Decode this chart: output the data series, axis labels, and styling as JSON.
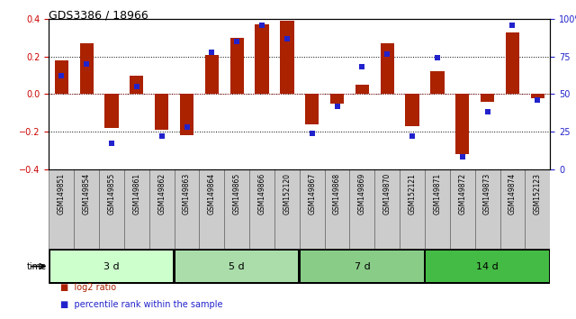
{
  "title": "GDS3386 / 18966",
  "samples": [
    "GSM149851",
    "GSM149854",
    "GSM149855",
    "GSM149861",
    "GSM149862",
    "GSM149863",
    "GSM149864",
    "GSM149865",
    "GSM149866",
    "GSM152120",
    "GSM149867",
    "GSM149868",
    "GSM149869",
    "GSM149870",
    "GSM152121",
    "GSM149871",
    "GSM149872",
    "GSM149873",
    "GSM149874",
    "GSM152123"
  ],
  "log2_ratio": [
    0.18,
    0.27,
    -0.18,
    0.1,
    -0.19,
    -0.22,
    0.21,
    0.3,
    0.37,
    0.39,
    -0.16,
    -0.05,
    0.05,
    0.27,
    -0.17,
    0.12,
    -0.32,
    -0.04,
    0.33,
    -0.02
  ],
  "percentile": [
    62,
    70,
    17,
    55,
    22,
    28,
    78,
    85,
    96,
    87,
    24,
    42,
    68,
    77,
    22,
    74,
    8,
    38,
    96,
    46
  ],
  "groups": [
    {
      "label": "3 d",
      "start": 0,
      "end": 5,
      "color": "#ccffcc"
    },
    {
      "label": "5 d",
      "start": 5,
      "end": 10,
      "color": "#aaddaa"
    },
    {
      "label": "7 d",
      "start": 10,
      "end": 15,
      "color": "#88cc88"
    },
    {
      "label": "14 d",
      "start": 15,
      "end": 20,
      "color": "#44bb44"
    }
  ],
  "bar_color": "#aa2200",
  "dot_color": "#2222cc",
  "ylim_left": [
    -0.4,
    0.4
  ],
  "ylim_right": [
    0,
    100
  ],
  "yticks_left": [
    -0.4,
    -0.2,
    0.0,
    0.2,
    0.4
  ],
  "yticks_right": [
    0,
    25,
    50,
    75,
    100
  ],
  "hlines": [
    0.2,
    0.0,
    -0.2
  ],
  "label_bg": "#cccccc",
  "cell_border": "#888888"
}
